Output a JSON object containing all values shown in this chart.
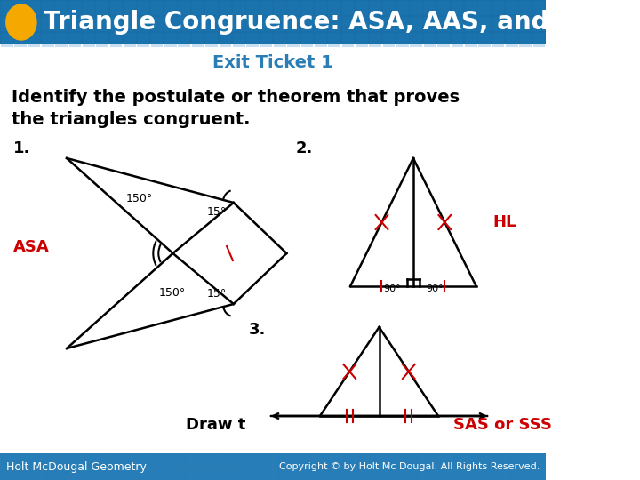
{
  "title": "Triangle Congruence: ASA, AAS, and HL",
  "title_bg_color": "#1a6fa8",
  "title_text_color": "#ffffff",
  "circle_color": "#f5a800",
  "subtitle": "Exit Ticket 1",
  "subtitle_color": "#2a7db5",
  "body_bg_color": "#ffffff",
  "main_text": "Identify the postulate or theorem that proves\nthe triangles congruent.",
  "main_text_color": "#000000",
  "label1": "1.",
  "label2": "2.",
  "label3": "3.",
  "answer1": "ASA",
  "answer2": "HL",
  "answer3": "SAS or SSS",
  "answer_color": "#cc0000",
  "draw_text": "Draw t",
  "footer_bg": "#2a7db5",
  "footer_left": "Holt McDougal Geometry",
  "footer_right": "Copyright © by Holt Mc Dougal. All Rights Reserved.",
  "footer_text_color": "#ffffff",
  "grid_color": "#2080c0",
  "black": "#000000",
  "red": "#cc0000"
}
